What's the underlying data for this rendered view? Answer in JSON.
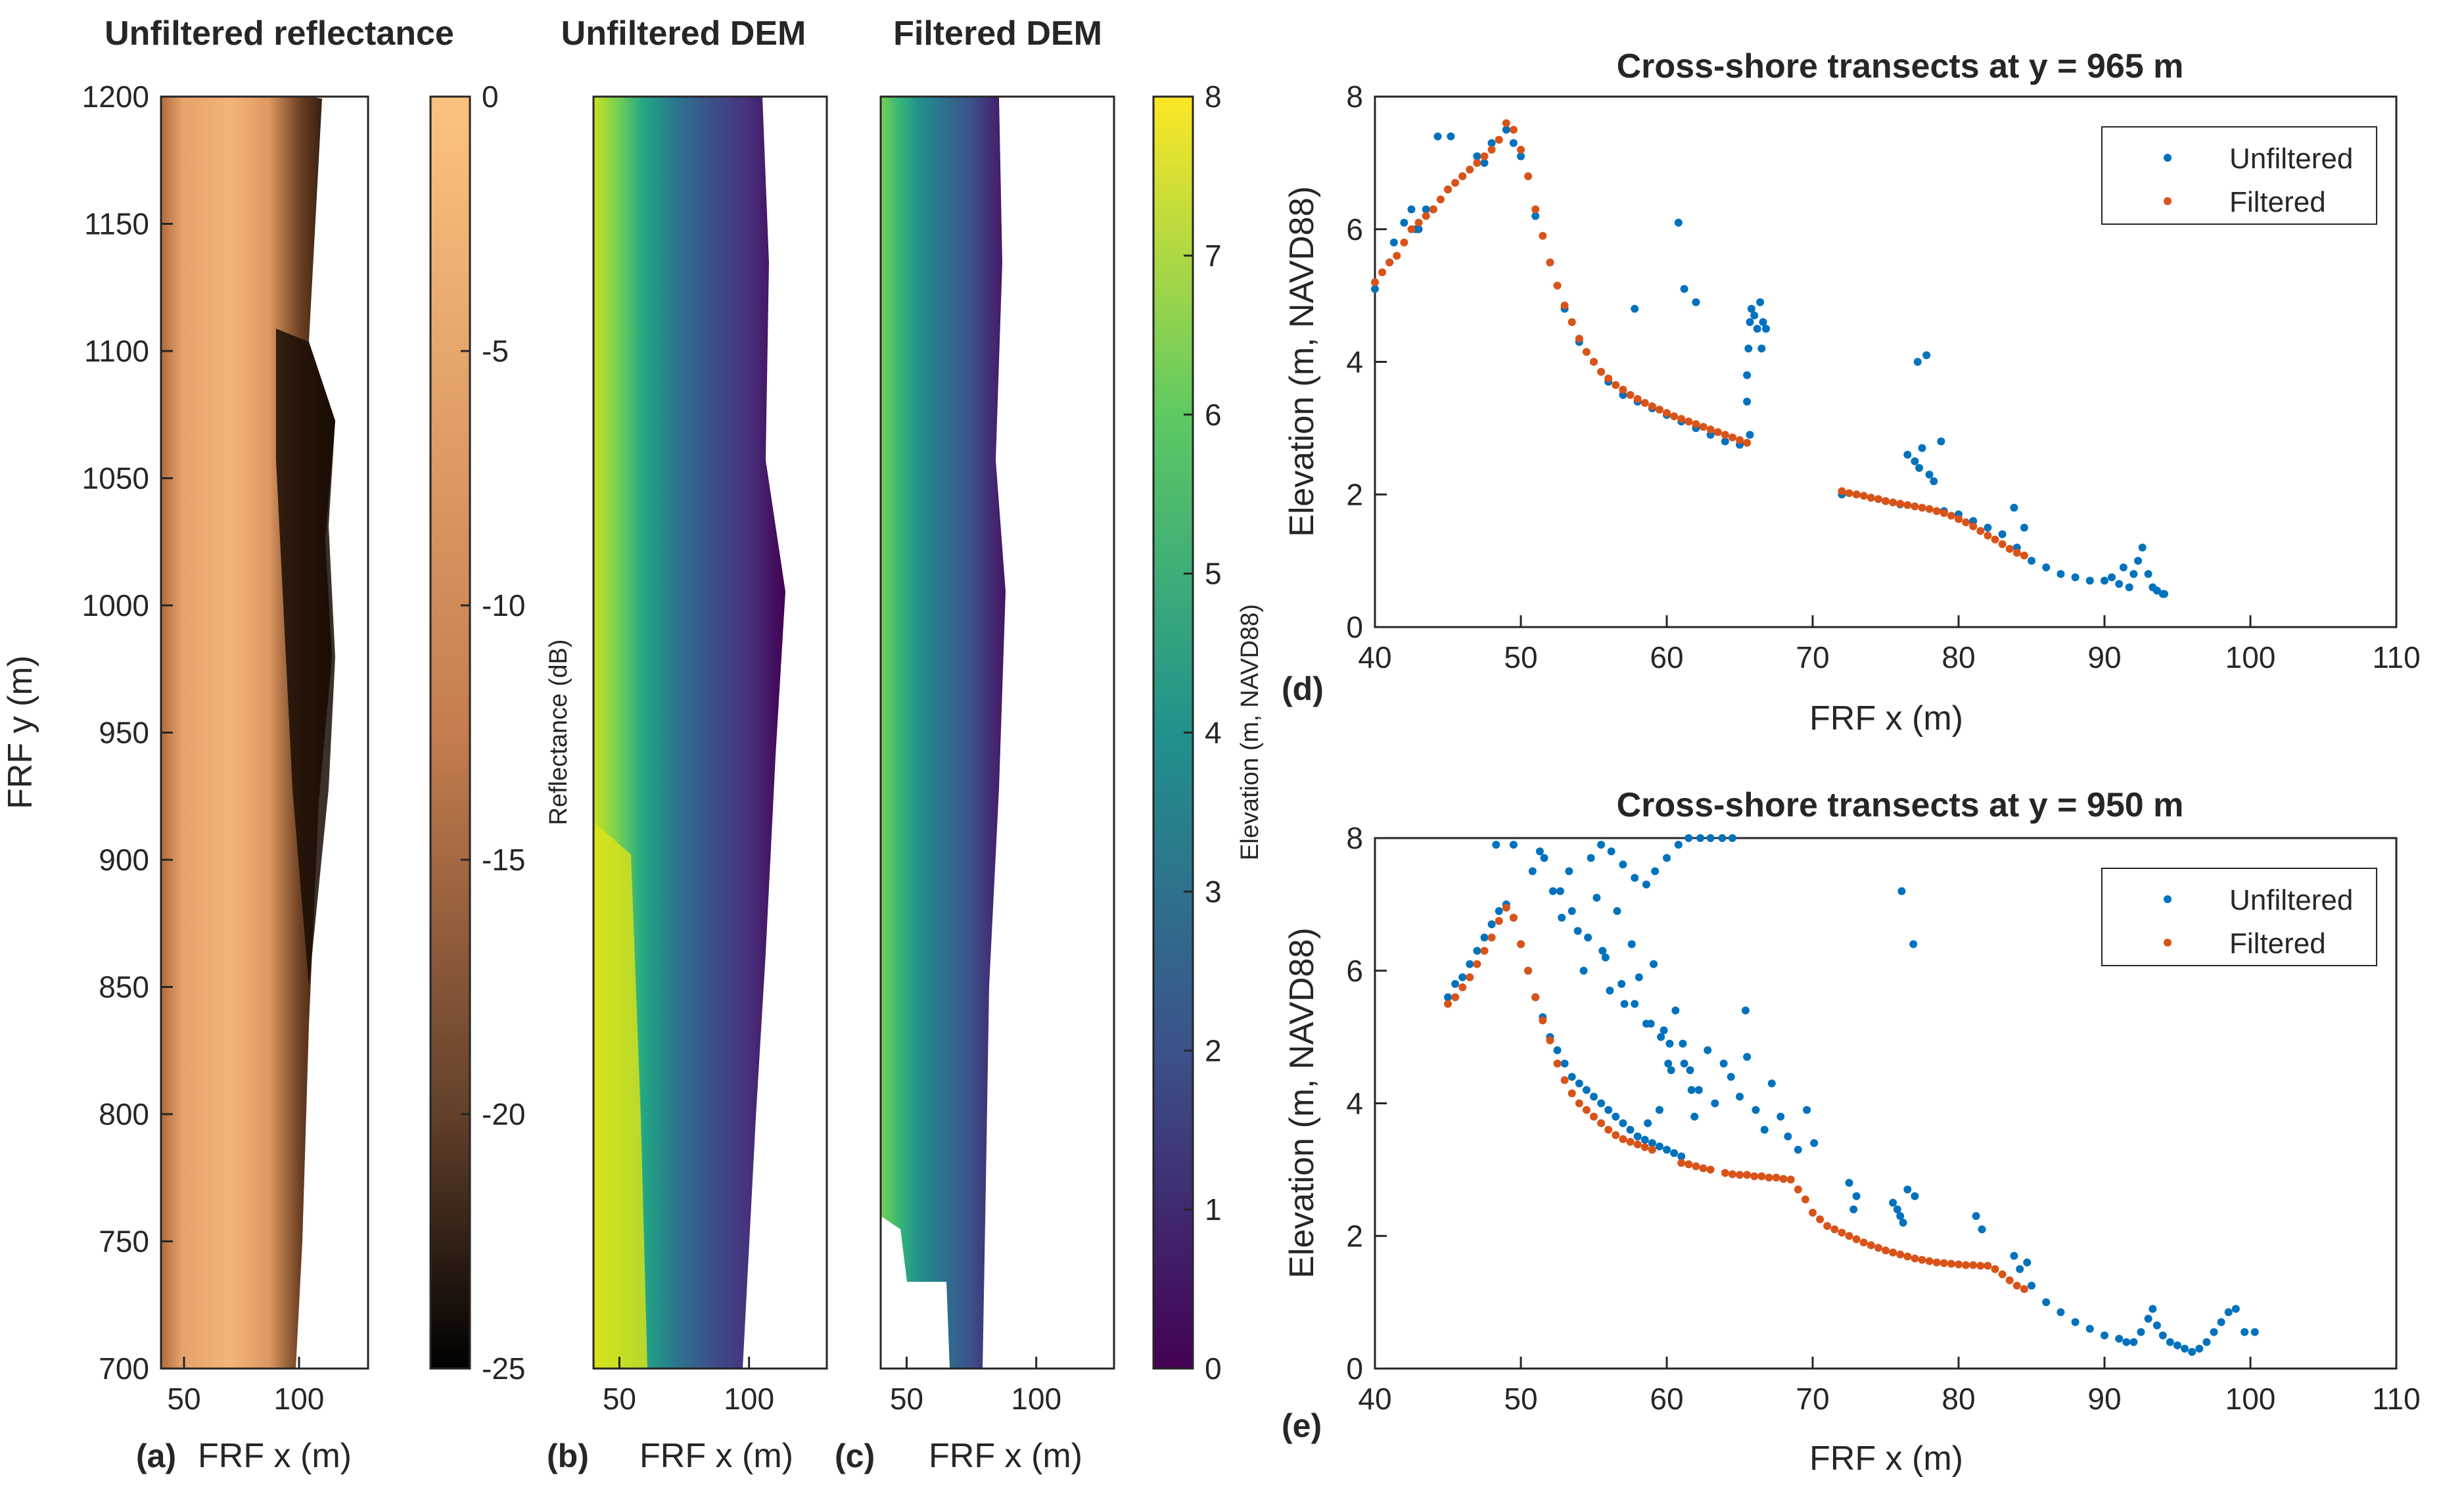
{
  "figure": {
    "colors": {
      "copper_light": "#fdc27f",
      "copper_dark": "#000000",
      "viridis": [
        "#440154",
        "#3b528b",
        "#21918c",
        "#5ec962",
        "#fde725"
      ],
      "unfiltered": "#0072bd",
      "filtered": "#d95319",
      "axis": "#262626"
    },
    "labels": {
      "ylabel_maps": "FRF y (m)",
      "xlabel_maps": "FRF x (m)",
      "ylabel_reflectance": "Reflectance (dB)",
      "ylabel_elev_cbar": "Elevation (m, NAVD88)",
      "xlabel_transect": "FRF x (m)",
      "ylabel_transect": "Elevation (m, NAVD88)"
    }
  },
  "chart_data": [
    {
      "id": "a",
      "panel_label": "(a)",
      "type": "heatmap",
      "title": "Unfiltered reflectance",
      "xlabel": "FRF x (m)",
      "ylabel": "FRF y (m)",
      "xlim": [
        40,
        130
      ],
      "ylim": [
        700,
        1200
      ],
      "xticks": [
        "50",
        "100"
      ],
      "xtick_values": [
        50,
        100
      ],
      "yticks": [
        "700",
        "750",
        "800",
        "850",
        "900",
        "950",
        "1000",
        "1050",
        "1100",
        "1150",
        "1200"
      ],
      "ytick_values": [
        700,
        750,
        800,
        850,
        900,
        950,
        1000,
        1050,
        1100,
        1150,
        1200
      ],
      "colorbar": {
        "label": "Reflectance (dB)",
        "range": [
          -25,
          0
        ],
        "ticks": [
          "0",
          "-5",
          "-10",
          "-15",
          "-20",
          "-25"
        ],
        "tick_values": [
          0,
          -5,
          -10,
          -15,
          -20,
          -25
        ],
        "colormap": "copper"
      }
    },
    {
      "id": "b",
      "panel_label": "(b)",
      "type": "heatmap",
      "title": "Unfiltered DEM",
      "xlabel": "FRF x (m)",
      "xlim": [
        40,
        130
      ],
      "ylim": [
        700,
        1200
      ],
      "xticks": [
        "50",
        "100"
      ],
      "xtick_values": [
        50,
        100
      ],
      "colormap": "viridis"
    },
    {
      "id": "c",
      "panel_label": "(c)",
      "type": "heatmap",
      "title": "Filtered DEM",
      "xlabel": "FRF x (m)",
      "xlim": [
        40,
        130
      ],
      "ylim": [
        700,
        1200
      ],
      "xticks": [
        "50",
        "100"
      ],
      "xtick_values": [
        50,
        100
      ],
      "colorbar": {
        "label": "Elevation (m, NAVD88)",
        "range": [
          0,
          8
        ],
        "ticks": [
          "0",
          "1",
          "2",
          "3",
          "4",
          "5",
          "6",
          "7",
          "8"
        ],
        "tick_values": [
          0,
          1,
          2,
          3,
          4,
          5,
          6,
          7,
          8
        ],
        "colormap": "viridis"
      }
    },
    {
      "id": "d",
      "panel_label": "(d)",
      "type": "scatter",
      "title": "Cross-shore transects at y = 965 m",
      "xlabel": "FRF x (m)",
      "ylabel": "Elevation (m, NAVD88)",
      "xlim": [
        40,
        110
      ],
      "ylim": [
        0,
        8
      ],
      "xticks": [
        "40",
        "50",
        "60",
        "70",
        "80",
        "90",
        "100",
        "110"
      ],
      "xtick_values": [
        40,
        50,
        60,
        70,
        80,
        90,
        100,
        110
      ],
      "yticks": [
        "0",
        "2",
        "4",
        "6",
        "8"
      ],
      "ytick_values": [
        0,
        2,
        4,
        6,
        8
      ],
      "legend": {
        "position": "top-right",
        "entries": [
          "Unfiltered",
          "Filtered"
        ]
      },
      "series": [
        {
          "name": "Unfiltered",
          "x": [
            40,
            41,
            42,
            42.5,
            43,
            44,
            45,
            46,
            47,
            48,
            49,
            49.5,
            50,
            51,
            52,
            53,
            54,
            55,
            56,
            57,
            58,
            59,
            60,
            61,
            62,
            63,
            64,
            65,
            65.5,
            65.5,
            65.6,
            65.7,
            65.8,
            66,
            66.2,
            66.5,
            66.8,
            65.7,
            57.8,
            60.8,
            61.2,
            62,
            66.4,
            66.6,
            72,
            73,
            74,
            75,
            76,
            76.5,
            77,
            77.3,
            77.5,
            78,
            78.3,
            77.2,
            77.8,
            78.8,
            79,
            80,
            81,
            82,
            83,
            83.8,
            84,
            84.5,
            85,
            86,
            87,
            88,
            89,
            90,
            90.5,
            91,
            91.3,
            91.7,
            92,
            92.3,
            92.6,
            93,
            93.3,
            93.6,
            94,
            94.1,
            47.5,
            45.2,
            44.3,
            43.5,
            42.8,
            41.3
          ],
          "y": [
            5.1,
            5.5,
            6.1,
            6.3,
            6.0,
            6.3,
            6.6,
            6.8,
            7.1,
            7.3,
            7.5,
            7.3,
            7.1,
            6.2,
            5.5,
            4.8,
            4.3,
            4.0,
            3.7,
            3.5,
            3.4,
            3.3,
            3.2,
            3.1,
            3.0,
            2.9,
            2.8,
            2.75,
            3.4,
            3.8,
            4.2,
            4.6,
            4.8,
            4.7,
            4.5,
            4.2,
            4.5,
            2.9,
            4.8,
            6.1,
            5.1,
            4.9,
            4.9,
            4.6,
            2.0,
            2.0,
            1.95,
            1.9,
            1.85,
            2.6,
            2.5,
            2.4,
            2.7,
            2.3,
            2.2,
            4.0,
            4.1,
            2.8,
            1.75,
            1.7,
            1.6,
            1.5,
            1.4,
            1.8,
            1.2,
            1.5,
            1.0,
            0.9,
            0.8,
            0.75,
            0.7,
            0.7,
            0.75,
            0.65,
            0.9,
            0.6,
            0.8,
            1.0,
            1.2,
            0.8,
            0.6,
            0.55,
            0.5,
            0.5,
            7.0,
            7.4,
            7.4,
            6.3,
            6.0,
            5.8
          ]
        },
        {
          "name": "Filtered",
          "x": [
            40,
            40.5,
            41,
            41.5,
            42,
            42.5,
            43,
            43.5,
            44,
            44.5,
            45,
            45.5,
            46,
            46.5,
            47,
            47.5,
            48,
            48.5,
            49,
            49.5,
            50,
            50.5,
            51,
            51.5,
            52,
            52.5,
            53,
            53.5,
            54,
            54.5,
            55,
            55.5,
            56,
            56.5,
            57,
            57.5,
            58,
            58.5,
            59,
            59.5,
            60,
            60.5,
            61,
            61.5,
            62,
            62.5,
            63,
            63.5,
            64,
            64.5,
            65,
            65.5,
            72,
            72.5,
            73,
            73.5,
            74,
            74.5,
            75,
            75.5,
            76,
            76.5,
            77,
            77.5,
            78,
            78.5,
            79,
            79.5,
            80,
            80.5,
            81,
            81.5,
            82,
            82.5,
            83,
            83.5,
            84,
            84.5
          ],
          "y": [
            5.2,
            5.35,
            5.5,
            5.6,
            5.8,
            6.0,
            6.1,
            6.2,
            6.3,
            6.45,
            6.6,
            6.7,
            6.8,
            6.9,
            7.0,
            7.1,
            7.2,
            7.35,
            7.6,
            7.5,
            7.2,
            6.8,
            6.3,
            5.9,
            5.5,
            5.15,
            4.85,
            4.6,
            4.35,
            4.15,
            4.0,
            3.85,
            3.75,
            3.65,
            3.58,
            3.5,
            3.44,
            3.38,
            3.33,
            3.28,
            3.23,
            3.18,
            3.14,
            3.1,
            3.06,
            3.02,
            2.98,
            2.94,
            2.9,
            2.86,
            2.82,
            2.78,
            2.05,
            2.02,
            2.0,
            1.98,
            1.95,
            1.93,
            1.9,
            1.88,
            1.86,
            1.84,
            1.82,
            1.8,
            1.78,
            1.75,
            1.72,
            1.68,
            1.63,
            1.58,
            1.52,
            1.45,
            1.38,
            1.32,
            1.25,
            1.18,
            1.12,
            1.08
          ]
        }
      ]
    },
    {
      "id": "e",
      "panel_label": "(e)",
      "type": "scatter",
      "title": "Cross-shore transects at y = 950 m",
      "xlabel": "FRF x (m)",
      "ylabel": "Elevation (m, NAVD88)",
      "xlim": [
        40,
        110
      ],
      "ylim": [
        0,
        8
      ],
      "xticks": [
        "40",
        "50",
        "60",
        "70",
        "80",
        "90",
        "100",
        "110"
      ],
      "xtick_values": [
        40,
        50,
        60,
        70,
        80,
        90,
        100,
        110
      ],
      "yticks": [
        "0",
        "2",
        "4",
        "6",
        "8"
      ],
      "ytick_values": [
        0,
        2,
        4,
        6,
        8
      ],
      "legend": {
        "position": "top-right",
        "entries": [
          "Unfiltered",
          "Filtered"
        ]
      },
      "series": [
        {
          "name": "Unfiltered",
          "x": [
            45,
            45.5,
            46,
            46.5,
            47,
            47.5,
            48,
            48.5,
            49,
            49.5,
            50,
            50.5,
            51,
            51.5,
            52,
            52.5,
            53,
            53.5,
            54,
            54.5,
            55,
            55.5,
            56,
            56.5,
            57,
            57.5,
            58,
            58.5,
            59,
            59.5,
            60,
            60.5,
            61,
            51.3,
            52.2,
            52.8,
            53.3,
            53.9,
            54.3,
            54.8,
            55.2,
            55.6,
            56.1,
            56.6,
            57.1,
            57.6,
            58.1,
            58.6,
            59.1,
            59.6,
            60.1,
            60.6,
            61.1,
            61.6,
            62.2,
            62.8,
            63.3,
            63.9,
            64.4,
            65,
            65.5,
            66.1,
            66.7,
            67.2,
            67.8,
            68.3,
            69,
            69.6,
            70.1,
            55.5,
            56.2,
            57,
            57.8,
            58.6,
            59.2,
            60,
            60.8,
            61.5,
            62.3,
            63,
            63.8,
            64.5,
            65.4,
            48.3,
            49.5,
            50.8,
            51.6,
            52.7,
            53.5,
            54.6,
            55.8,
            56.9,
            57.8,
            58.9,
            60.2,
            61.2,
            61.7,
            58.7,
            59.5,
            60.3,
            59.8,
            61.9,
            72.5,
            73,
            72.8,
            75.5,
            76,
            76.5,
            76.2,
            75.8,
            77,
            76.1,
            76.9,
            81.2,
            81.6,
            83.8,
            84.2,
            84.7,
            85,
            86,
            87,
            88,
            89,
            90,
            91,
            91.5,
            92,
            92.5,
            93,
            93.3,
            93.6,
            94,
            94.5,
            95,
            95.5,
            96,
            96.5,
            97,
            97.5,
            98,
            98.5,
            99,
            99.6,
            100.3
          ],
          "y": [
            5.6,
            5.8,
            5.9,
            6.1,
            6.3,
            6.5,
            6.7,
            6.9,
            7.0,
            6.8,
            6.4,
            6.0,
            5.6,
            5.3,
            5.0,
            4.8,
            4.6,
            4.4,
            4.3,
            4.2,
            4.1,
            4.0,
            3.9,
            3.8,
            3.7,
            3.6,
            3.5,
            3.45,
            3.4,
            3.35,
            3.3,
            3.25,
            3.2,
            7.8,
            7.2,
            6.8,
            7.5,
            6.6,
            6.0,
            7.7,
            7.1,
            6.3,
            5.7,
            6.9,
            5.5,
            6.4,
            5.9,
            5.2,
            6.1,
            5.0,
            4.6,
            5.4,
            4.9,
            4.5,
            4.2,
            4.8,
            4.0,
            4.6,
            4.4,
            4.1,
            4.7,
            3.9,
            3.6,
            4.3,
            3.8,
            3.5,
            3.3,
            3.9,
            3.4,
            7.9,
            7.8,
            7.6,
            7.4,
            7.3,
            7.5,
            7.7,
            7.9,
            8.0,
            8.0,
            8.0,
            8.0,
            8.0,
            5.4,
            7.9,
            7.9,
            7.5,
            7.7,
            7.2,
            6.9,
            6.5,
            6.2,
            5.8,
            5.5,
            5.2,
            4.9,
            4.6,
            4.2,
            3.7,
            3.9,
            4.5,
            5.1,
            3.8,
            2.8,
            2.6,
            2.4,
            2.5,
            2.3,
            2.7,
            2.2,
            2.4,
            2.6,
            7.2,
            6.4,
            2.3,
            2.1,
            1.7,
            1.5,
            1.6,
            1.25,
            1.0,
            0.85,
            0.7,
            0.6,
            0.5,
            0.45,
            0.4,
            0.4,
            0.55,
            0.75,
            0.9,
            0.65,
            0.5,
            0.4,
            0.35,
            0.3,
            0.25,
            0.3,
            0.4,
            0.55,
            0.7,
            0.85,
            0.9,
            0.55,
            0.55
          ]
        },
        {
          "name": "Filtered",
          "x": [
            45,
            45.5,
            46,
            46.5,
            47,
            47.5,
            48,
            48.5,
            49,
            49.5,
            50,
            50.5,
            51,
            51.5,
            52,
            52.5,
            53,
            53.5,
            54,
            54.5,
            55,
            55.5,
            56,
            56.5,
            57,
            57.5,
            58,
            58.5,
            59,
            61,
            61.5,
            62,
            62.5,
            63,
            64,
            64.5,
            65,
            65.5,
            66,
            66.5,
            67,
            67.5,
            68,
            68.5,
            69,
            69.5,
            70,
            70.5,
            71,
            71.5,
            72,
            72.5,
            73,
            73.5,
            74,
            74.5,
            75,
            75.5,
            76,
            76.5,
            77,
            77.5,
            78,
            78.5,
            79,
            79.5,
            80,
            80.5,
            81,
            81.5,
            82,
            82.5,
            83,
            83.5,
            84,
            84.5
          ],
          "y": [
            5.5,
            5.6,
            5.75,
            5.9,
            6.1,
            6.3,
            6.5,
            6.75,
            6.95,
            6.8,
            6.4,
            6.0,
            5.6,
            5.25,
            4.95,
            4.6,
            4.35,
            4.15,
            4.0,
            3.9,
            3.8,
            3.7,
            3.6,
            3.52,
            3.46,
            3.42,
            3.38,
            3.34,
            3.3,
            3.1,
            3.08,
            3.05,
            3.02,
            3.0,
            2.95,
            2.93,
            2.92,
            2.92,
            2.9,
            2.9,
            2.88,
            2.88,
            2.86,
            2.85,
            2.7,
            2.55,
            2.35,
            2.25,
            2.15,
            2.1,
            2.05,
            2.0,
            1.95,
            1.9,
            1.86,
            1.82,
            1.78,
            1.75,
            1.72,
            1.69,
            1.66,
            1.64,
            1.62,
            1.6,
            1.59,
            1.58,
            1.57,
            1.56,
            1.56,
            1.55,
            1.55,
            1.5,
            1.42,
            1.33,
            1.25,
            1.2
          ]
        }
      ]
    }
  ]
}
